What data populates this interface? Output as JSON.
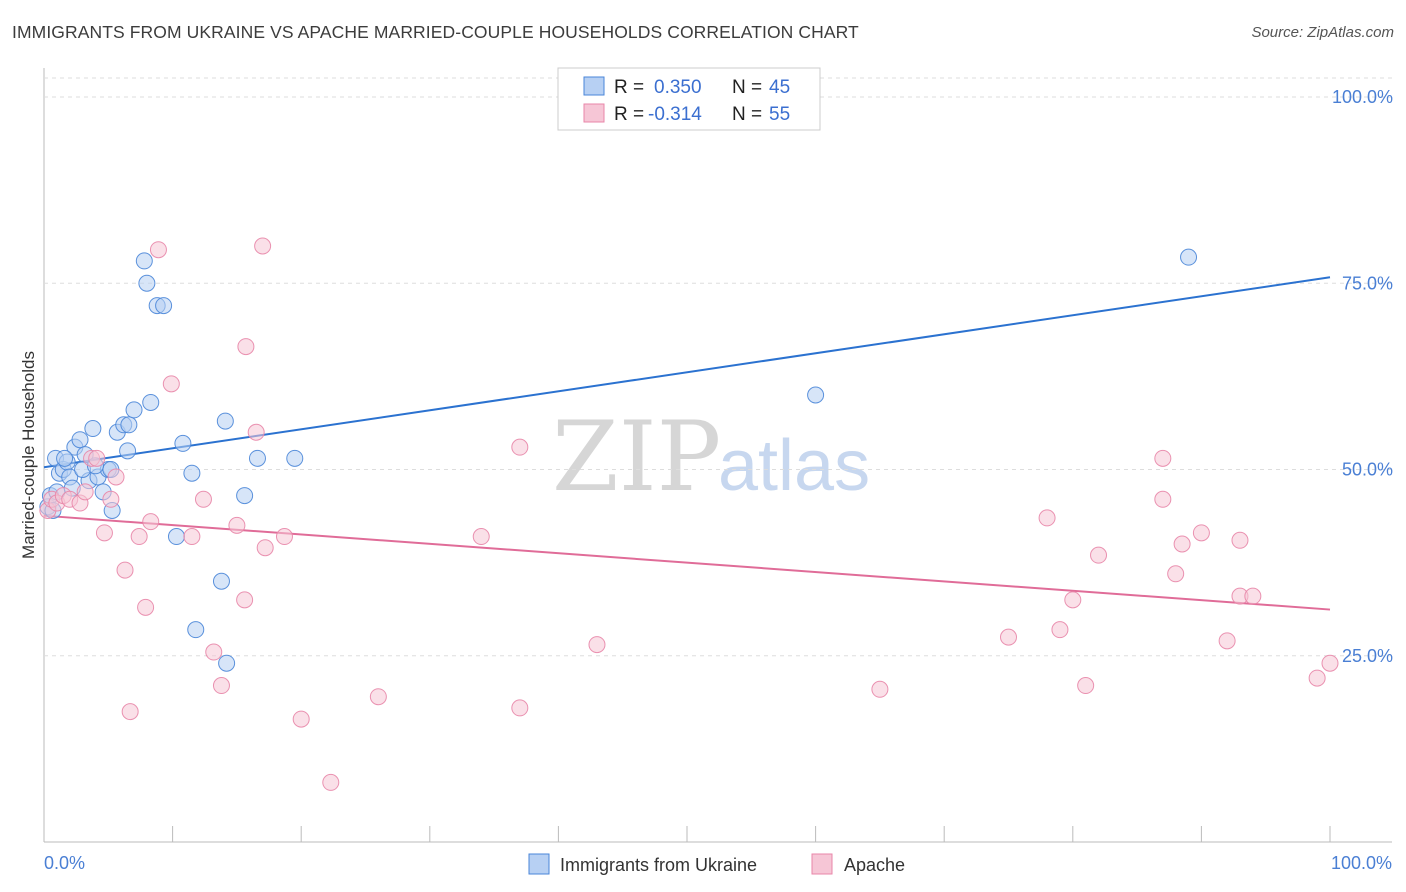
{
  "title": "IMMIGRANTS FROM UKRAINE VS APACHE MARRIED-COUPLE HOUSEHOLDS CORRELATION CHART",
  "source": "Source: ZipAtlas.com",
  "watermark": {
    "zip": "ZIP",
    "atlas": "atlas"
  },
  "colors": {
    "blue": "#4a86d8",
    "blue_fill": "#b7d0f3",
    "blue_line": "#2b72d0",
    "pink": "#e886a8",
    "pink_fill": "#f6c6d6",
    "pink_line": "#e06c98",
    "tick_text": "#4a7fd4",
    "grid": "#dddddd"
  },
  "legend": {
    "rows": [
      {
        "r_label": "R =",
        "r_value": "0.350",
        "n_label": "N =",
        "n_value": "45"
      },
      {
        "r_label": "R =",
        "r_value": "-0.314",
        "n_label": "N =",
        "n_value": "55"
      }
    ]
  },
  "chart_data": {
    "type": "scatter",
    "title": "IMMIGRANTS FROM UKRAINE VS APACHE MARRIED-COUPLE HOUSEHOLDS CORRELATION CHART",
    "xlabel": "",
    "ylabel": "Married-couple Households",
    "xlim": [
      0,
      100
    ],
    "ylim": [
      0,
      100
    ],
    "x_tick_labels": [
      "0.0%",
      "100.0%"
    ],
    "y_ticks": [
      25,
      50,
      75,
      100
    ],
    "y_tick_labels": [
      "25.0%",
      "50.0%",
      "75.0%",
      "100.0%"
    ],
    "grid": true,
    "series": [
      {
        "name": "Immigrants from Ukraine",
        "color": "#4a86d8",
        "r": 0.35,
        "n": 45,
        "trend": {
          "x0": 0,
          "y0": 50.3,
          "x1": 100,
          "y1": 75.8
        },
        "points": [
          [
            0.3,
            45.0
          ],
          [
            0.5,
            46.5
          ],
          [
            0.7,
            44.5
          ],
          [
            0.9,
            51.5
          ],
          [
            1.2,
            49.5
          ],
          [
            1.5,
            50.0
          ],
          [
            1.8,
            51.0
          ],
          [
            2.0,
            49.0
          ],
          [
            2.4,
            53.0
          ],
          [
            2.8,
            54.0
          ],
          [
            3.2,
            52.0
          ],
          [
            3.5,
            48.5
          ],
          [
            3.8,
            55.5
          ],
          [
            4.2,
            49.0
          ],
          [
            4.6,
            47.0
          ],
          [
            5.0,
            50.0
          ],
          [
            5.3,
            44.5
          ],
          [
            5.7,
            55.0
          ],
          [
            6.2,
            56.0
          ],
          [
            6.6,
            56.0
          ],
          [
            6.5,
            52.5
          ],
          [
            7.0,
            58.0
          ],
          [
            7.8,
            78.0
          ],
          [
            8.0,
            75.0
          ],
          [
            8.3,
            59.0
          ],
          [
            8.8,
            72.0
          ],
          [
            9.3,
            72.0
          ],
          [
            10.3,
            41.0
          ],
          [
            10.8,
            53.5
          ],
          [
            11.5,
            49.5
          ],
          [
            11.8,
            28.5
          ],
          [
            13.8,
            35.0
          ],
          [
            14.1,
            56.5
          ],
          [
            14.2,
            24.0
          ],
          [
            15.6,
            46.5
          ],
          [
            16.6,
            51.5
          ],
          [
            19.5,
            51.5
          ],
          [
            5.2,
            50.0
          ],
          [
            3.0,
            50.0
          ],
          [
            4.0,
            50.5
          ],
          [
            1.0,
            47.0
          ],
          [
            2.2,
            47.5
          ],
          [
            60.0,
            60.0
          ],
          [
            89.0,
            78.5
          ],
          [
            1.6,
            51.5
          ]
        ]
      },
      {
        "name": "Apache",
        "color": "#e886a8",
        "r": -0.314,
        "n": 55,
        "trend": {
          "x0": 0,
          "y0": 43.8,
          "x1": 100,
          "y1": 31.2
        },
        "points": [
          [
            0.3,
            44.5
          ],
          [
            0.6,
            46.0
          ],
          [
            1.0,
            45.5
          ],
          [
            1.5,
            46.5
          ],
          [
            2.0,
            46.0
          ],
          [
            2.8,
            45.5
          ],
          [
            3.2,
            47.0
          ],
          [
            3.7,
            51.5
          ],
          [
            4.1,
            51.5
          ],
          [
            4.7,
            41.5
          ],
          [
            5.2,
            46.0
          ],
          [
            5.6,
            49.0
          ],
          [
            6.3,
            36.5
          ],
          [
            6.7,
            17.5
          ],
          [
            7.4,
            41.0
          ],
          [
            7.9,
            31.5
          ],
          [
            8.3,
            43.0
          ],
          [
            8.9,
            79.5
          ],
          [
            9.9,
            61.5
          ],
          [
            11.5,
            41.0
          ],
          [
            12.4,
            46.0
          ],
          [
            13.2,
            25.5
          ],
          [
            13.8,
            21.0
          ],
          [
            15.0,
            42.5
          ],
          [
            15.6,
            32.5
          ],
          [
            15.7,
            66.5
          ],
          [
            16.5,
            55.0
          ],
          [
            17.0,
            80.0
          ],
          [
            17.2,
            39.5
          ],
          [
            18.7,
            41.0
          ],
          [
            20.0,
            16.5
          ],
          [
            22.3,
            8.0
          ],
          [
            26.0,
            19.5
          ],
          [
            34.0,
            41.0
          ],
          [
            37.0,
            53.0
          ],
          [
            37.0,
            18.0
          ],
          [
            43.0,
            26.5
          ],
          [
            65.0,
            20.5
          ],
          [
            75.0,
            27.5
          ],
          [
            78.0,
            43.5
          ],
          [
            79.0,
            28.5
          ],
          [
            80.0,
            32.5
          ],
          [
            81.0,
            21.0
          ],
          [
            82.0,
            38.5
          ],
          [
            87.0,
            46.0
          ],
          [
            87.0,
            51.5
          ],
          [
            88.0,
            36.0
          ],
          [
            88.5,
            40.0
          ],
          [
            90.0,
            41.5
          ],
          [
            92.0,
            27.0
          ],
          [
            93.0,
            40.5
          ],
          [
            93.0,
            33.0
          ],
          [
            94.0,
            33.0
          ],
          [
            99.0,
            22.0
          ],
          [
            100.0,
            24.0
          ]
        ]
      }
    ]
  }
}
